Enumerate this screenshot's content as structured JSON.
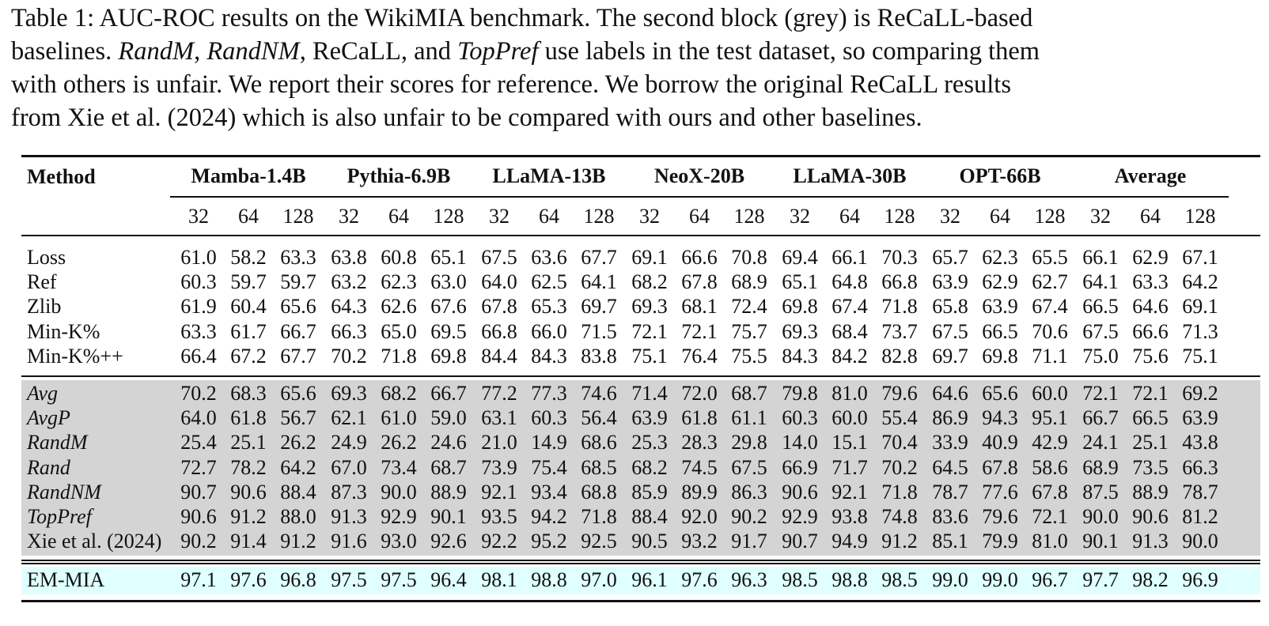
{
  "caption": {
    "lines": [
      [
        {
          "t": "Table 1: AUC-ROC results on the WikiMIA benchmark. The second block (grey) is ReCaLL-based"
        }
      ],
      [
        {
          "t": "baselines. "
        },
        {
          "t": "RandM",
          "i": true
        },
        {
          "t": ", "
        },
        {
          "t": "RandNM",
          "i": true
        },
        {
          "t": ", ReCaLL, and "
        },
        {
          "t": "TopPref",
          "i": true
        },
        {
          "t": " use labels in the test dataset, so comparing them"
        }
      ],
      [
        {
          "t": "with others is unfair. We report their scores for reference. We borrow the original ReCaLL results"
        }
      ],
      [
        {
          "t": "from Xie et al. (2024) which is also unfair to be compared with ours and other baselines."
        }
      ]
    ]
  },
  "table": {
    "method_header": "Method",
    "models": [
      "Mamba-1.4B",
      "Pythia-6.9B",
      "LLaMA-13B",
      "NeoX-20B",
      "LLaMA-30B",
      "OPT-66B",
      "Average"
    ],
    "lengths": [
      "32",
      "64",
      "128"
    ],
    "colors": {
      "grey_block": "#d4d4d4",
      "highlight": "#e0ffff"
    },
    "blocks": [
      {
        "shade": "none",
        "rows": [
          {
            "method": "Loss",
            "italic": false,
            "values": [
              "61.0",
              "58.2",
              "63.3",
              "63.8",
              "60.8",
              "65.1",
              "67.5",
              "63.6",
              "67.7",
              "69.1",
              "66.6",
              "70.8",
              "69.4",
              "66.1",
              "70.3",
              "65.7",
              "62.3",
              "65.5",
              "66.1",
              "62.9",
              "67.1"
            ]
          },
          {
            "method": "Ref",
            "italic": false,
            "values": [
              "60.3",
              "59.7",
              "59.7",
              "63.2",
              "62.3",
              "63.0",
              "64.0",
              "62.5",
              "64.1",
              "68.2",
              "67.8",
              "68.9",
              "65.1",
              "64.8",
              "66.8",
              "63.9",
              "62.9",
              "62.7",
              "64.1",
              "63.3",
              "64.2"
            ]
          },
          {
            "method": "Zlib",
            "italic": false,
            "values": [
              "61.9",
              "60.4",
              "65.6",
              "64.3",
              "62.6",
              "67.6",
              "67.8",
              "65.3",
              "69.7",
              "69.3",
              "68.1",
              "72.4",
              "69.8",
              "67.4",
              "71.8",
              "65.8",
              "63.9",
              "67.4",
              "66.5",
              "64.6",
              "69.1"
            ]
          },
          {
            "method": "Min-K%",
            "italic": false,
            "values": [
              "63.3",
              "61.7",
              "66.7",
              "66.3",
              "65.0",
              "69.5",
              "66.8",
              "66.0",
              "71.5",
              "72.1",
              "72.1",
              "75.7",
              "69.3",
              "68.4",
              "73.7",
              "67.5",
              "66.5",
              "70.6",
              "67.5",
              "66.6",
              "71.3"
            ]
          },
          {
            "method": "Min-K%++",
            "italic": false,
            "values": [
              "66.4",
              "67.2",
              "67.7",
              "70.2",
              "71.8",
              "69.8",
              "84.4",
              "84.3",
              "83.8",
              "75.1",
              "76.4",
              "75.5",
              "84.3",
              "84.2",
              "82.8",
              "69.7",
              "69.8",
              "71.1",
              "75.0",
              "75.6",
              "75.1"
            ]
          }
        ]
      },
      {
        "shade": "grey",
        "rows": [
          {
            "method": "Avg",
            "italic": true,
            "values": [
              "70.2",
              "68.3",
              "65.6",
              "69.3",
              "68.2",
              "66.7",
              "77.2",
              "77.3",
              "74.6",
              "71.4",
              "72.0",
              "68.7",
              "79.8",
              "81.0",
              "79.6",
              "64.6",
              "65.6",
              "60.0",
              "72.1",
              "72.1",
              "69.2"
            ]
          },
          {
            "method": "AvgP",
            "italic": true,
            "values": [
              "64.0",
              "61.8",
              "56.7",
              "62.1",
              "61.0",
              "59.0",
              "63.1",
              "60.3",
              "56.4",
              "63.9",
              "61.8",
              "61.1",
              "60.3",
              "60.0",
              "55.4",
              "86.9",
              "94.3",
              "95.1",
              "66.7",
              "66.5",
              "63.9"
            ]
          },
          {
            "method": "RandM",
            "italic": true,
            "values": [
              "25.4",
              "25.1",
              "26.2",
              "24.9",
              "26.2",
              "24.6",
              "21.0",
              "14.9",
              "68.6",
              "25.3",
              "28.3",
              "29.8",
              "14.0",
              "15.1",
              "70.4",
              "33.9",
              "40.9",
              "42.9",
              "24.1",
              "25.1",
              "43.8"
            ]
          },
          {
            "method": "Rand",
            "italic": true,
            "values": [
              "72.7",
              "78.2",
              "64.2",
              "67.0",
              "73.4",
              "68.7",
              "73.9",
              "75.4",
              "68.5",
              "68.2",
              "74.5",
              "67.5",
              "66.9",
              "71.7",
              "70.2",
              "64.5",
              "67.8",
              "58.6",
              "68.9",
              "73.5",
              "66.3"
            ]
          },
          {
            "method": "RandNM",
            "italic": true,
            "values": [
              "90.7",
              "90.6",
              "88.4",
              "87.3",
              "90.0",
              "88.9",
              "92.1",
              "93.4",
              "68.8",
              "85.9",
              "89.9",
              "86.3",
              "90.6",
              "92.1",
              "71.8",
              "78.7",
              "77.6",
              "67.8",
              "87.5",
              "88.9",
              "78.7"
            ]
          },
          {
            "method": "TopPref",
            "italic": true,
            "values": [
              "90.6",
              "91.2",
              "88.0",
              "91.3",
              "92.9",
              "90.1",
              "93.5",
              "94.2",
              "71.8",
              "88.4",
              "92.0",
              "90.2",
              "92.9",
              "93.8",
              "74.8",
              "83.6",
              "79.6",
              "72.1",
              "90.0",
              "90.6",
              "81.2"
            ]
          },
          {
            "method": "Xie et al. (2024)",
            "italic": false,
            "values": [
              "90.2",
              "91.4",
              "91.2",
              "91.6",
              "93.0",
              "92.6",
              "92.2",
              "95.2",
              "92.5",
              "90.5",
              "93.2",
              "91.7",
              "90.7",
              "94.9",
              "91.2",
              "85.1",
              "79.9",
              "81.0",
              "90.1",
              "91.3",
              "90.0"
            ]
          }
        ]
      },
      {
        "shade": "highlight",
        "rows": [
          {
            "method": "EM-MIA",
            "italic": false,
            "values": [
              "97.1",
              "97.6",
              "96.8",
              "97.5",
              "97.5",
              "96.4",
              "98.1",
              "98.8",
              "97.0",
              "96.1",
              "97.6",
              "96.3",
              "98.5",
              "98.8",
              "98.5",
              "99.0",
              "99.0",
              "96.7",
              "97.7",
              "98.2",
              "96.9"
            ]
          }
        ]
      }
    ]
  }
}
